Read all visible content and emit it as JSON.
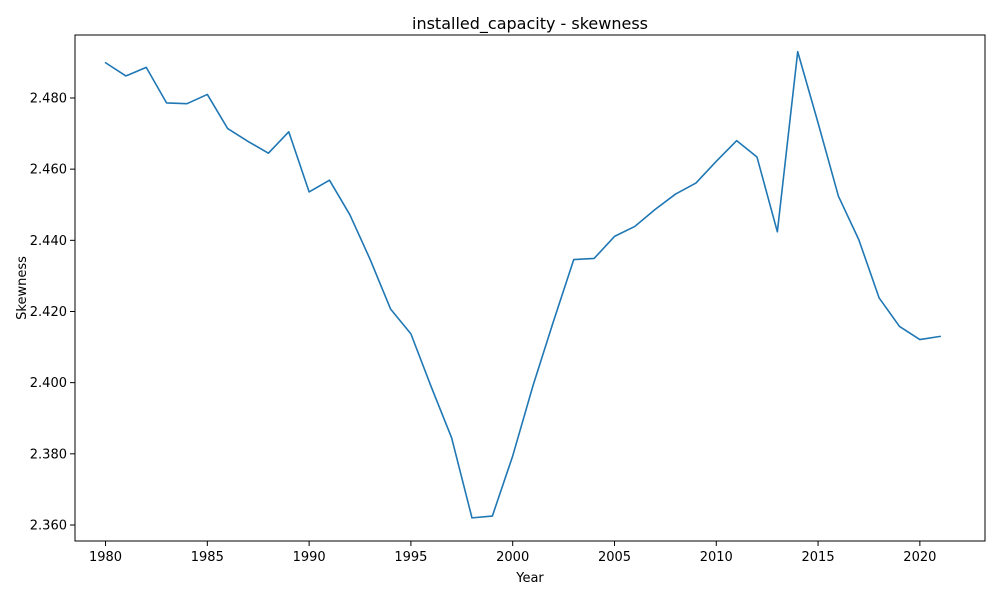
{
  "chart_data": {
    "type": "line",
    "title": "installed_capacity - skewness",
    "xlabel": "Year",
    "ylabel": "Skewness",
    "xlim": [
      1978.5,
      2023.2
    ],
    "ylim": [
      2.3555,
      2.4977
    ],
    "x_ticks": [
      1980,
      1985,
      1990,
      1995,
      2000,
      2005,
      2010,
      2015,
      2020
    ],
    "y_ticks": [
      2.36,
      2.38,
      2.4,
      2.42,
      2.44,
      2.46,
      2.48
    ],
    "y_tick_labels": [
      "2.360",
      "2.380",
      "2.400",
      "2.420",
      "2.440",
      "2.460",
      "2.480"
    ],
    "grid": false,
    "line_color": "#1f77b4",
    "series": [
      {
        "x": [
          1980,
          1981,
          1982,
          1983,
          1984,
          1985,
          1986,
          1987,
          1988,
          1989,
          1990,
          1991,
          1992,
          1993,
          1994,
          1995,
          1996,
          1997,
          1998,
          1999,
          2000,
          2001,
          2002,
          2003,
          2004,
          2005,
          2006,
          2007,
          2008,
          2009,
          2010,
          2011,
          2012,
          2013,
          2014,
          2015,
          2016,
          2017,
          2018,
          2019,
          2020,
          2021
        ],
        "values": [
          2.4899,
          2.4862,
          2.4886,
          2.4786,
          2.4784,
          2.481,
          2.4714,
          2.4678,
          2.4645,
          2.4705,
          2.4536,
          2.4569,
          2.4472,
          2.4346,
          2.4207,
          2.4137,
          2.3988,
          2.3845,
          2.362,
          2.3625,
          2.3794,
          2.3992,
          2.4172,
          2.4346,
          2.4349,
          2.4411,
          2.4439,
          2.4487,
          2.453,
          2.4561,
          2.4622,
          2.468,
          2.4634,
          2.4424,
          2.493,
          2.473,
          2.4524,
          2.4402,
          2.4238,
          2.4158,
          2.4121,
          2.413
        ]
      }
    ]
  }
}
